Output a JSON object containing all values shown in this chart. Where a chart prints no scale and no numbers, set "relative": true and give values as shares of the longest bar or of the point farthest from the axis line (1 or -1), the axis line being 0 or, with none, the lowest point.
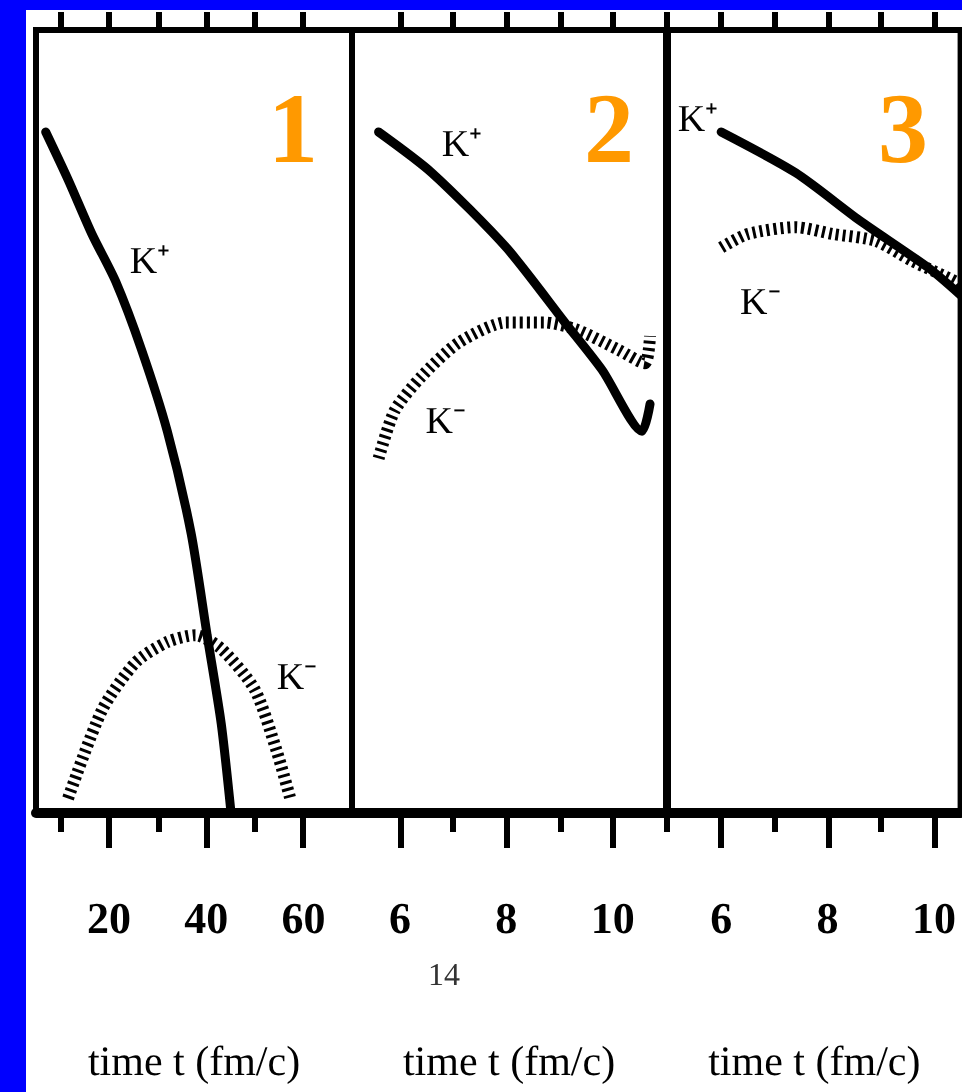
{
  "chart_data": [
    {
      "type": "line",
      "title": "1",
      "xlabel": "time t (fm/c)",
      "relative": true,
      "xlim": [
        5,
        70
      ],
      "xticks": [
        {
          "value": 10,
          "label": null
        },
        20,
        {
          "value": 30,
          "label": null
        },
        40,
        {
          "value": 50,
          "label": null
        },
        60
      ],
      "legend": false,
      "grid": false,
      "marker": "none",
      "series": [
        {
          "name": "K⁺",
          "color": "#000000",
          "line_style": "solid",
          "x": [
            7,
            11.6,
            16.5,
            21.4,
            26.7,
            32,
            36.9,
            40.2,
            43.1,
            45.1
          ],
          "values": [
            1,
            0.93,
            0.85,
            0.78,
            0.68,
            0.56,
            0.41,
            0.26,
            0.13,
            0
          ]
        },
        {
          "name": "K⁻",
          "color": "#000000",
          "line_style": "dotted",
          "x": [
            11.6,
            18.6,
            25.5,
            32,
            37.8,
            43.1,
            50,
            54.5,
            57.3
          ],
          "values": [
            0.02,
            0.15,
            0.22,
            0.25,
            0.26,
            0.24,
            0.18,
            0.09,
            0.02
          ]
        }
      ]
    },
    {
      "type": "line",
      "title": "2",
      "xlabel": "time t (fm/c)",
      "relative": true,
      "xlim": [
        5.1,
        11
      ],
      "xticks": [
        6,
        {
          "value": 7,
          "label": null
        },
        8,
        {
          "value": 9,
          "label": null
        },
        10,
        {
          "value": 11,
          "label": null
        }
      ],
      "legend": false,
      "grid": false,
      "marker": "none",
      "annotations": [
        "14"
      ],
      "series": [
        {
          "name": "K⁺",
          "color": "#000000",
          "line_style": "solid",
          "x": [
            5.6,
            6.6,
            8,
            9.1,
            9.8,
            10.55,
            10.7
          ],
          "values": [
            1,
            0.94,
            0.83,
            0.72,
            0.65,
            0.56,
            0.6
          ]
        },
        {
          "name": "K⁻",
          "color": "#000000",
          "line_style": "dotted",
          "x": [
            5.6,
            5.9,
            6.4,
            7.1,
            8,
            8.7,
            9.3,
            10.1,
            10.6,
            10.7
          ],
          "values": [
            0.52,
            0.59,
            0.64,
            0.69,
            0.72,
            0.72,
            0.71,
            0.68,
            0.66,
            0.7
          ]
        }
      ]
    },
    {
      "type": "line",
      "title": "3",
      "xlabel": "time t (fm/c)",
      "relative": true,
      "xlim": [
        5,
        10.5
      ],
      "xticks": [
        6,
        {
          "value": 7,
          "label": null
        },
        8,
        {
          "value": 9,
          "label": null
        },
        10
      ],
      "legend": false,
      "grid": false,
      "marker": "none",
      "series": [
        {
          "name": "K⁺",
          "color": "#000000",
          "line_style": "solid",
          "x": [
            6,
            7.4,
            8.6,
            9.9,
            10.5
          ],
          "values": [
            1,
            0.94,
            0.87,
            0.8,
            0.76
          ]
        },
        {
          "name": "K⁻",
          "color": "#000000",
          "line_style": "dotted",
          "x": [
            6,
            6.5,
            7.4,
            8.1,
            8.9,
            9.6,
            10.4,
            10.5
          ],
          "values": [
            0.83,
            0.85,
            0.86,
            0.85,
            0.84,
            0.81,
            0.78,
            0.77
          ]
        }
      ]
    }
  ]
}
